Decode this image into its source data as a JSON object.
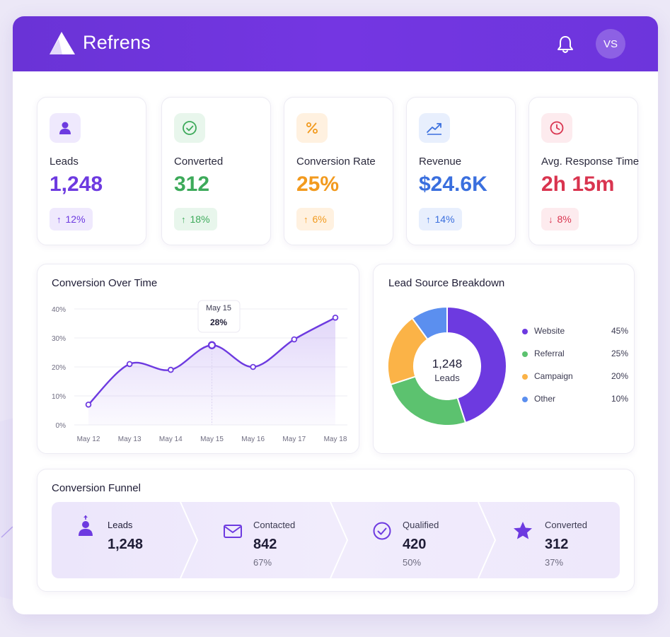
{
  "app": {
    "brand": "Refrens",
    "user_initials": "VS"
  },
  "colors": {
    "header": "#6a33d6",
    "purple": "#6d3ae0",
    "green": "#3daa5a",
    "orange": "#f29a1e",
    "blue": "#3a6fde",
    "red": "#d9344f"
  },
  "kpis": [
    {
      "label": "Leads",
      "value": "1,248",
      "delta": "12%",
      "direction": "up",
      "icon": "person-icon"
    },
    {
      "label": "Converted",
      "value": "312",
      "delta": "18%",
      "direction": "up",
      "icon": "check-circle-icon"
    },
    {
      "label": "Conversion Rate",
      "value": "25%",
      "delta": "6%",
      "direction": "up",
      "icon": "percent-icon"
    },
    {
      "label": "Revenue",
      "value": "$24.6K",
      "delta": "14%",
      "direction": "up",
      "icon": "trend-up-icon"
    },
    {
      "label": "Avg. Response Time",
      "value": "2h 15m",
      "delta": "8%",
      "direction": "down",
      "icon": "clock-icon"
    }
  ],
  "conversion": {
    "title": "Conversion Over Time",
    "tooltip": {
      "label": "May 15",
      "value": "28%"
    }
  },
  "lead_source": {
    "title": "Lead Source Breakdown",
    "center_value": "1,248",
    "center_label": "Leads"
  },
  "funnel": {
    "title": "Conversion Funnel",
    "stages": [
      {
        "name": "Leads",
        "value": "1,248",
        "pct": "",
        "icon": "person-icon"
      },
      {
        "name": "Contacted",
        "value": "842",
        "pct": "67%",
        "icon": "mail-icon"
      },
      {
        "name": "Qualified",
        "value": "420",
        "pct": "50%",
        "icon": "check-circle-icon"
      },
      {
        "name": "Converted",
        "value": "312",
        "pct": "37%",
        "icon": "star-icon"
      }
    ]
  },
  "chart_data": [
    {
      "type": "area",
      "title": "Conversion Over Time",
      "categories": [
        "May 12",
        "May 13",
        "May 14",
        "May 15",
        "May 16",
        "May 17",
        "May 18"
      ],
      "y_ticks": [
        "0%",
        "10%",
        "20%",
        "30%",
        "40%"
      ],
      "ylim": [
        0,
        40
      ],
      "series": [
        {
          "values": [
            7,
            21,
            19,
            27.5,
            20,
            29.5,
            37
          ]
        }
      ],
      "grid": true,
      "line_color": "#6d3ae0"
    },
    {
      "type": "pie",
      "title": "Lead Source Breakdown",
      "labels": [
        "Website",
        "Referral",
        "Campaign",
        "Other"
      ],
      "values": [
        45,
        25,
        20,
        10
      ],
      "value_labels": [
        "45%",
        "25%",
        "20%",
        "10%"
      ],
      "colors": [
        "#6d3ae0",
        "#5cc26f",
        "#fbb347",
        "#5b8fef"
      ],
      "legend": "right"
    }
  ]
}
